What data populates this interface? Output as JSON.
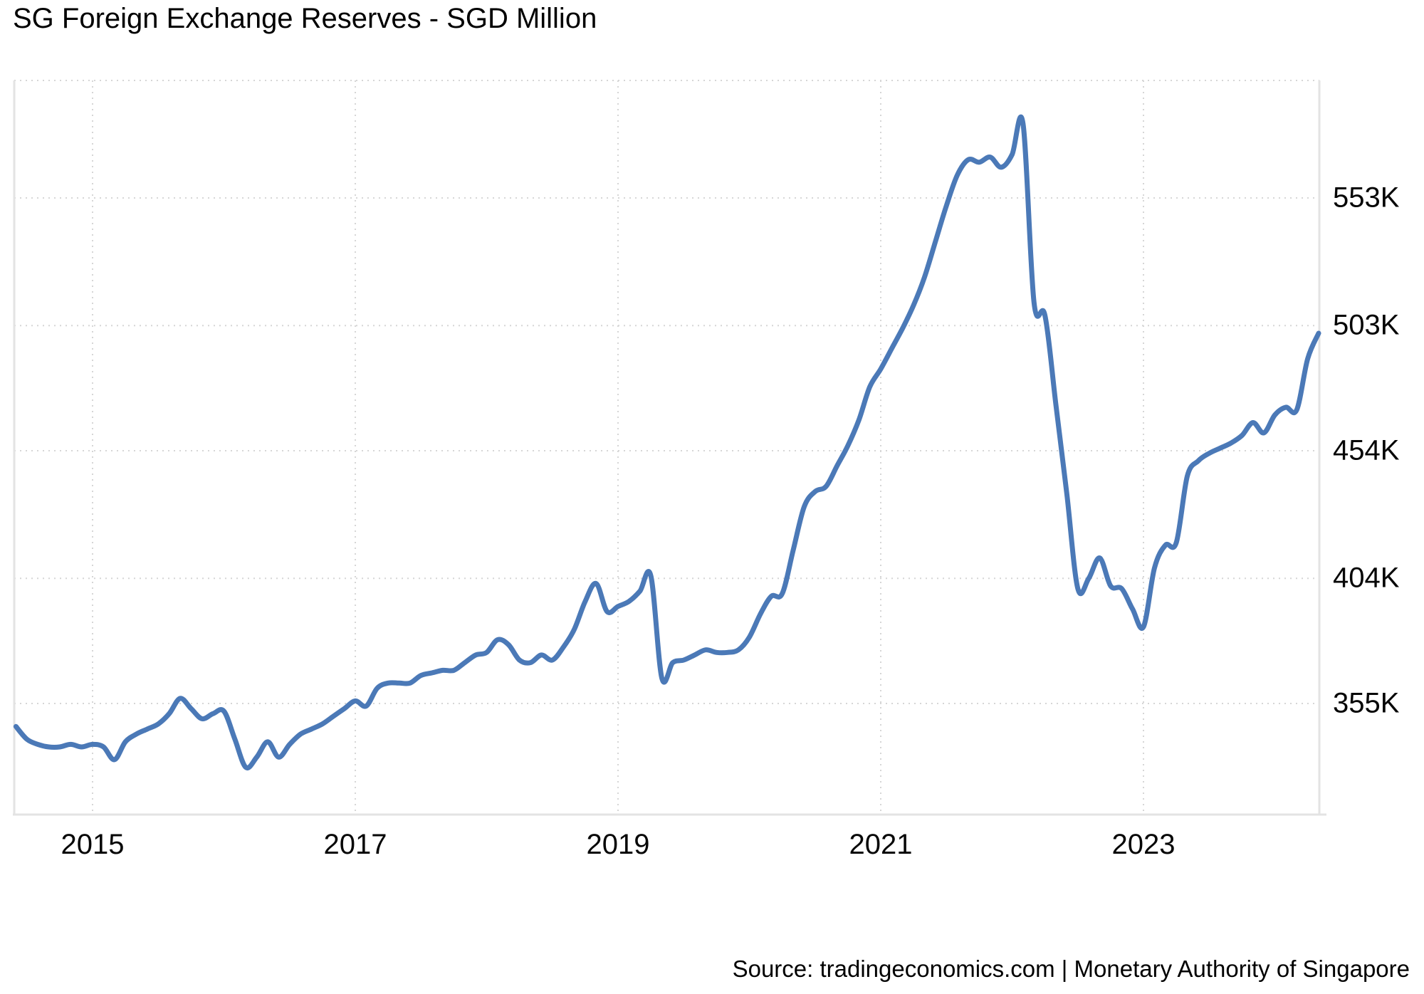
{
  "page": {
    "source_text": "Source: tradingeconomics.com | Monetary Authority of Singapore"
  },
  "chart_data": {
    "type": "line",
    "title": "SG Foreign Exchange Reserves - SGD Million",
    "ylabel": "SGD Million",
    "xlabel": "",
    "legend_position": "none",
    "grid": "dotted",
    "line_color": "#4b79b7",
    "grid_color": "#d6d6d6",
    "axis_color": "#e3e3e3",
    "y_axis": {
      "min": 311500,
      "max": 599000
    },
    "y_ticks": [
      {
        "value": 553000,
        "label": "553K"
      },
      {
        "value": 503000,
        "label": "503K"
      },
      {
        "value": 454000,
        "label": "454K"
      },
      {
        "value": 404000,
        "label": "404K"
      },
      {
        "value": 355000,
        "label": "355K"
      }
    ],
    "x_ticks": [
      {
        "year": 2015,
        "label": "2015"
      },
      {
        "year": 2017,
        "label": "2017"
      },
      {
        "year": 2019,
        "label": "2019"
      },
      {
        "year": 2021,
        "label": "2021"
      },
      {
        "year": 2023,
        "label": "2023"
      }
    ],
    "x_start": "2014-06",
    "frequency": "monthly",
    "series": [
      {
        "name": "SG Foreign Exchange Reserves",
        "unit": "SGD Million",
        "values": [
          346000,
          341000,
          339000,
          338000,
          338000,
          339000,
          338000,
          339000,
          338000,
          333000,
          340000,
          343000,
          345000,
          347000,
          351000,
          357000,
          353000,
          349000,
          351000,
          352000,
          341000,
          330000,
          334000,
          340000,
          334000,
          339000,
          343000,
          345000,
          347000,
          350000,
          353000,
          356000,
          354000,
          361000,
          363000,
          363000,
          363000,
          366000,
          367000,
          368000,
          368000,
          371000,
          374000,
          375000,
          380000,
          378000,
          372000,
          371000,
          374000,
          372000,
          377000,
          384000,
          395000,
          402000,
          391000,
          393000,
          395000,
          399000,
          405000,
          365000,
          371000,
          372000,
          374000,
          376000,
          375000,
          375000,
          376000,
          381000,
          390000,
          397000,
          398000,
          415000,
          432000,
          438000,
          440000,
          448000,
          456000,
          466000,
          479000,
          486000,
          494000,
          502000,
          511000,
          522000,
          536000,
          550000,
          562000,
          568000,
          567000,
          569000,
          565000,
          570000,
          582000,
          512000,
          507000,
          472000,
          437000,
          400000,
          404000,
          412000,
          401000,
          400000,
          392000,
          385000,
          408000,
          417000,
          418000,
          444000,
          450000,
          453000,
          455000,
          457000,
          460000,
          465000,
          461000,
          468000,
          471000,
          470000,
          490000,
          500000
        ]
      }
    ]
  }
}
